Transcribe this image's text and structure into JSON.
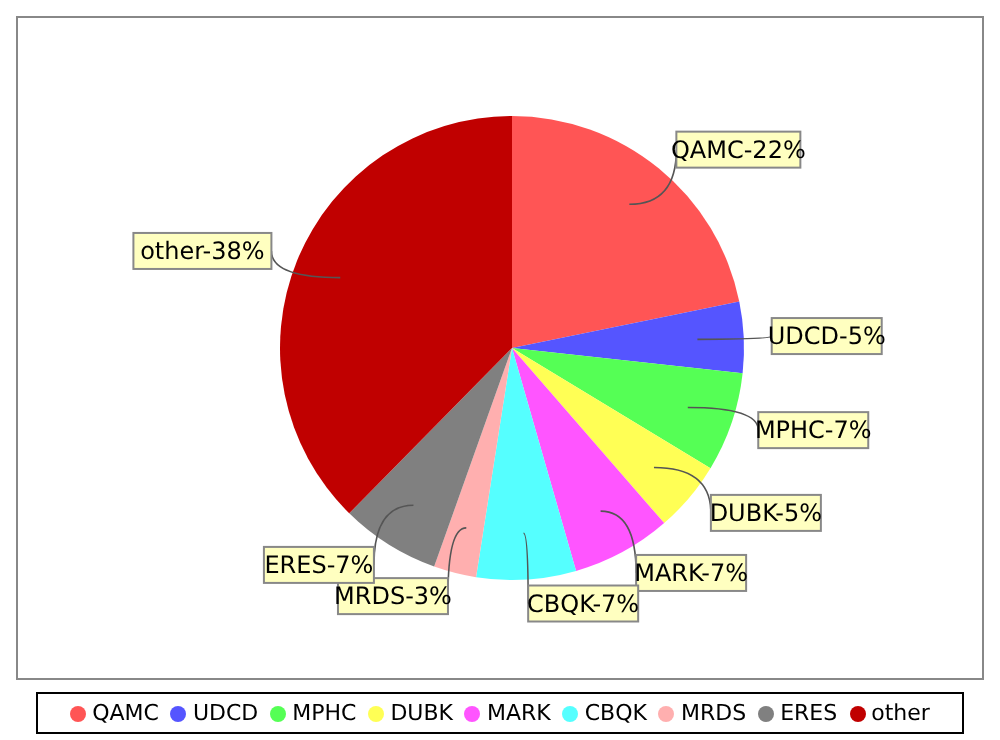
{
  "chart_data": {
    "type": "pie",
    "categories": [
      "QAMC",
      "UDCD",
      "MPHC",
      "DUBK",
      "MARK",
      "CBQK",
      "MRDS",
      "ERES",
      "other"
    ],
    "values": [
      22,
      5,
      7,
      5,
      7,
      7,
      3,
      7,
      38
    ],
    "value_labels": [
      "QAMC-22%",
      "UDCD-5%",
      "MPHC-7%",
      "DUBK-5%",
      "MARK-7%",
      "CBQK-7%",
      "MRDS-3%",
      "ERES-7%",
      "other-38%"
    ],
    "colors": [
      "#ff5555",
      "#5555ff",
      "#55ff55",
      "#ffff55",
      "#ff55ff",
      "#55ffff",
      "#ffafaf",
      "#808080",
      "#c00000"
    ],
    "legend": "bottom"
  }
}
